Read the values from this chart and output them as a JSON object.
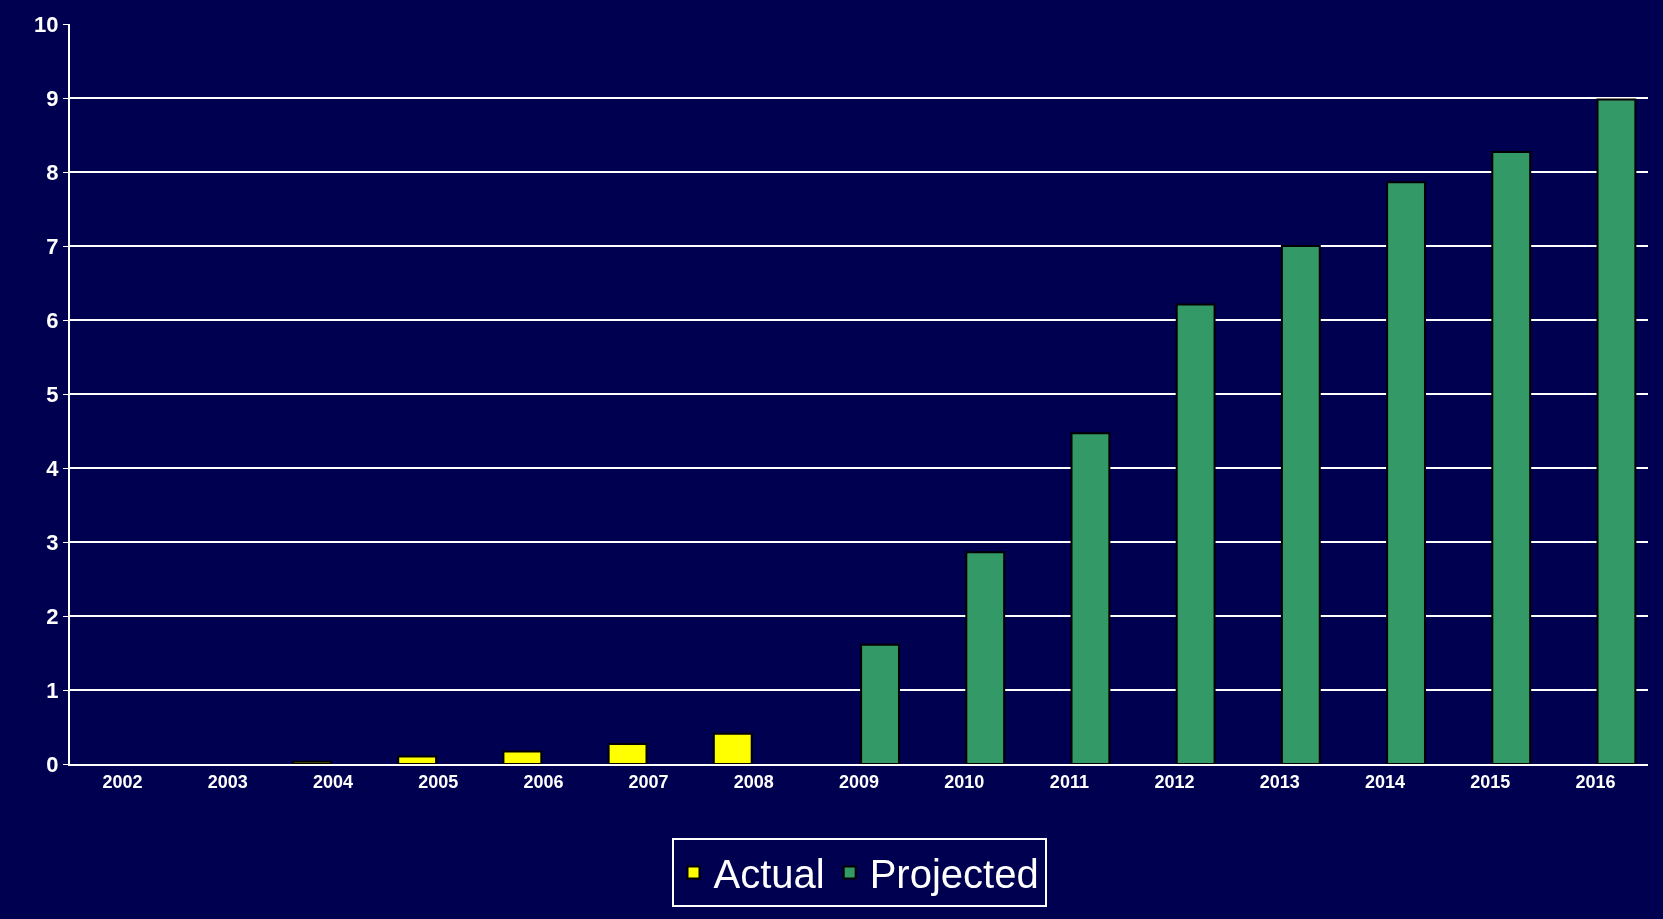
{
  "chart_data": {
    "type": "bar",
    "categories": [
      "2002",
      "2003",
      "2004",
      "2005",
      "2006",
      "2007",
      "2008",
      "2009",
      "2010",
      "2011",
      "2012",
      "2013",
      "2014",
      "2015",
      "2016"
    ],
    "series": [
      {
        "name": "Actual",
        "color": "#ffff00",
        "values": [
          null,
          null,
          0.03,
          0.1,
          0.17,
          0.27,
          0.41,
          null,
          null,
          null,
          null,
          null,
          null,
          null,
          null
        ]
      },
      {
        "name": "Projected",
        "color": "#339966",
        "values": [
          null,
          null,
          null,
          null,
          null,
          null,
          null,
          1.61,
          2.86,
          4.47,
          6.21,
          7.0,
          7.86,
          8.27,
          8.98
        ]
      }
    ],
    "ylim": [
      0,
      10
    ],
    "yticks": [
      0,
      1,
      2,
      3,
      4,
      5,
      6,
      7,
      8,
      9,
      10
    ],
    "grid": "y",
    "legend": "bottom"
  }
}
